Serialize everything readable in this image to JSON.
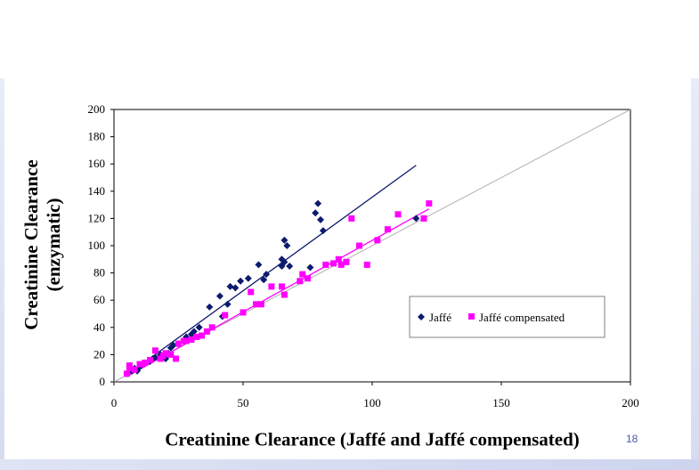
{
  "slide": {
    "number": "18"
  },
  "chart_data": {
    "type": "scatter",
    "title": "",
    "xlabel": "Creatinine Clearance (Jaffé and Jaffé compensated)",
    "ylabel_lines": [
      "Creatinine Clearance",
      "(enzymatic)"
    ],
    "xlim": [
      0,
      200
    ],
    "ylim": [
      0,
      200
    ],
    "x_ticks": [
      0,
      50,
      100,
      150,
      200
    ],
    "y_ticks": [
      0,
      20,
      40,
      60,
      80,
      100,
      120,
      140,
      160,
      180,
      200
    ],
    "grid": false,
    "legend_position": "bottom-right",
    "identity_line": {
      "from": [
        0,
        0
      ],
      "to": [
        200,
        200
      ],
      "color": "#b0b0b0"
    },
    "series": [
      {
        "name": "Jaffé",
        "marker": "diamond",
        "color": "#0d1a6e",
        "points": [
          [
            5,
            6
          ],
          [
            7,
            8
          ],
          [
            8,
            10
          ],
          [
            9,
            8
          ],
          [
            10,
            11
          ],
          [
            11,
            13
          ],
          [
            12,
            14
          ],
          [
            14,
            15
          ],
          [
            15,
            17
          ],
          [
            16,
            18
          ],
          [
            18,
            20
          ],
          [
            19,
            18
          ],
          [
            20,
            17
          ],
          [
            21,
            21
          ],
          [
            22,
            25
          ],
          [
            23,
            27
          ],
          [
            25,
            28
          ],
          [
            27,
            30
          ],
          [
            28,
            33
          ],
          [
            30,
            35
          ],
          [
            31,
            37
          ],
          [
            33,
            40
          ],
          [
            37,
            55
          ],
          [
            41,
            63
          ],
          [
            42,
            48
          ],
          [
            44,
            57
          ],
          [
            45,
            70
          ],
          [
            47,
            69
          ],
          [
            49,
            74
          ],
          [
            52,
            76
          ],
          [
            56,
            86
          ],
          [
            58,
            75
          ],
          [
            59,
            79
          ],
          [
            65,
            85
          ],
          [
            65,
            90
          ],
          [
            66,
            104
          ],
          [
            66,
            88
          ],
          [
            67,
            100
          ],
          [
            68,
            85
          ],
          [
            76,
            84
          ],
          [
            78,
            124
          ],
          [
            79,
            131
          ],
          [
            80,
            119
          ],
          [
            81,
            111
          ],
          [
            117,
            120
          ]
        ],
        "trendline": {
          "from": [
            5,
            5
          ],
          "to": [
            117,
            159
          ]
        }
      },
      {
        "name": "Jaffé compensated",
        "marker": "square",
        "color": "#ff00ff",
        "points": [
          [
            5,
            6
          ],
          [
            6,
            10
          ],
          [
            6,
            12
          ],
          [
            8,
            9
          ],
          [
            10,
            13
          ],
          [
            11,
            13
          ],
          [
            12,
            14
          ],
          [
            14,
            16
          ],
          [
            16,
            23
          ],
          [
            18,
            17
          ],
          [
            19,
            19
          ],
          [
            20,
            21
          ],
          [
            22,
            20
          ],
          [
            24,
            17
          ],
          [
            25,
            28
          ],
          [
            27,
            30
          ],
          [
            28,
            30
          ],
          [
            30,
            31
          ],
          [
            32,
            33
          ],
          [
            34,
            34
          ],
          [
            36,
            37
          ],
          [
            38,
            40
          ],
          [
            43,
            49
          ],
          [
            50,
            51
          ],
          [
            53,
            66
          ],
          [
            55,
            57
          ],
          [
            57,
            57
          ],
          [
            61,
            70
          ],
          [
            65,
            70
          ],
          [
            66,
            64
          ],
          [
            72,
            74
          ],
          [
            73,
            79
          ],
          [
            75,
            76
          ],
          [
            82,
            86
          ],
          [
            85,
            87
          ],
          [
            87,
            90
          ],
          [
            88,
            86
          ],
          [
            90,
            88
          ],
          [
            92,
            120
          ],
          [
            95,
            100
          ],
          [
            98,
            86
          ],
          [
            102,
            104
          ],
          [
            106,
            112
          ],
          [
            110,
            123
          ],
          [
            120,
            120
          ],
          [
            122,
            131
          ]
        ],
        "trendline": {
          "from": [
            5,
            4
          ],
          "to": [
            122,
            127
          ]
        }
      }
    ]
  }
}
